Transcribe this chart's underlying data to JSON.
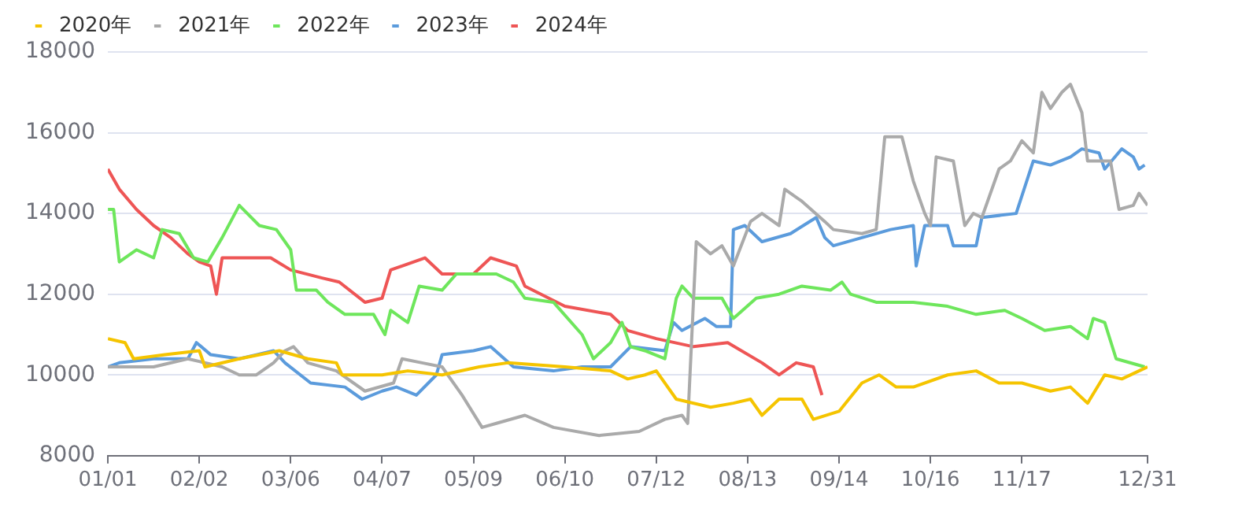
{
  "chart_data": {
    "type": "line",
    "legend": "top left",
    "grid": "y",
    "marker": "none",
    "line_style": "solid",
    "xlim": [
      "--01-01",
      "--12-31"
    ],
    "xticks": [
      {
        "value": "--01-01",
        "label": "01/01"
      },
      {
        "value": "--02-02",
        "label": "02/02"
      },
      {
        "value": "--03-06",
        "label": "03/06"
      },
      {
        "value": "--04-07",
        "label": "04/07"
      },
      {
        "value": "--05-09",
        "label": "05/09"
      },
      {
        "value": "--06-10",
        "label": "06/10"
      },
      {
        "value": "--07-12",
        "label": "07/12"
      },
      {
        "value": "--08-13",
        "label": "08/13"
      },
      {
        "value": "--09-14",
        "label": "09/14"
      },
      {
        "value": "--10-16",
        "label": "10/16"
      },
      {
        "value": "--11-17",
        "label": "11/17"
      },
      {
        "value": "--12-31",
        "label": "12/31"
      }
    ],
    "ylim": [
      8000,
      18000
    ],
    "yticks": [
      8000,
      10000,
      12000,
      14000,
      16000,
      18000
    ],
    "series": [
      {
        "name": "2020年",
        "color": "#f5c400",
        "x": [
          "--01-01",
          "--01-07",
          "--01-10",
          "--01-21",
          "--02-02",
          "--02-04",
          "--02-16",
          "--03-02",
          "--03-12",
          "--03-22",
          "--03-24",
          "--04-07",
          "--04-16",
          "--04-28",
          "--05-11",
          "--05-21",
          "--06-10",
          "--06-26",
          "--07-02",
          "--07-08",
          "--07-12",
          "--07-19",
          "--07-31",
          "--08-08",
          "--08-14",
          "--08-18",
          "--08-24",
          "--09-01",
          "--09-05",
          "--09-14",
          "--09-22",
          "--09-28",
          "--10-04",
          "--10-10",
          "--10-22",
          "--11-01",
          "--11-09",
          "--11-17",
          "--11-27",
          "--12-04",
          "--12-10",
          "--12-16",
          "--12-22",
          "--12-28",
          "--12-31"
        ],
        "values": [
          10900,
          10800,
          10400,
          10500,
          10600,
          10200,
          10400,
          10600,
          10400,
          10300,
          10000,
          10000,
          10100,
          10000,
          10200,
          10300,
          10200,
          10100,
          9900,
          10000,
          10100,
          9400,
          9200,
          9300,
          9400,
          9000,
          9400,
          9400,
          8900,
          9100,
          9800,
          10000,
          9700,
          9700,
          10000,
          10100,
          9800,
          9800,
          9600,
          9700,
          9300,
          10000,
          9900,
          10100,
          10200
        ]
      },
      {
        "name": "2021年",
        "color": "#aaaaaa",
        "x": [
          "--01-01",
          "--01-17",
          "--01-29",
          "--02-10",
          "--02-16",
          "--02-22",
          "--02-28",
          "--03-04",
          "--03-07",
          "--03-12",
          "--03-22",
          "--04-01",
          "--04-11",
          "--04-14",
          "--04-21",
          "--04-28",
          "--05-05",
          "--05-12",
          "--05-17",
          "--05-27",
          "--06-06",
          "--06-22",
          "--07-06",
          "--07-15",
          "--07-21",
          "--07-23",
          "--07-26",
          "--07-31",
          "--08-04",
          "--08-08",
          "--08-14",
          "--08-18",
          "--08-24",
          "--08-26",
          "--09-01",
          "--09-09",
          "--09-12",
          "--09-22",
          "--09-27",
          "--09-30",
          "--10-06",
          "--10-10",
          "--10-14",
          "--10-16",
          "--10-18",
          "--10-24",
          "--10-28",
          "--10-31",
          "--11-03",
          "--11-09",
          "--11-13",
          "--11-17",
          "--11-21",
          "--11-24",
          "--11-27",
          "--12-01",
          "--12-04",
          "--12-08",
          "--12-10",
          "--12-18",
          "--12-21",
          "--12-26",
          "--12-28",
          "--12-31"
        ],
        "values": [
          10200,
          10200,
          10400,
          10200,
          10000,
          10000,
          10300,
          10600,
          10700,
          10300,
          10100,
          9600,
          9800,
          10400,
          10300,
          10200,
          9500,
          8700,
          8800,
          9000,
          8700,
          8500,
          8600,
          8900,
          9000,
          8800,
          13300,
          13000,
          13200,
          12700,
          13800,
          14000,
          13700,
          14600,
          14300,
          13800,
          13600,
          13500,
          13600,
          15900,
          15900,
          14800,
          14000,
          13700,
          15400,
          15300,
          13700,
          14000,
          13900,
          15100,
          15300,
          15800,
          15500,
          17000,
          16600,
          17000,
          17200,
          16500,
          15300,
          15300,
          14100,
          14200,
          14500,
          14200
        ]
      },
      {
        "name": "2022年",
        "color": "#6ee65c",
        "x": [
          "--01-01",
          "--01-03",
          "--01-05",
          "--01-11",
          "--01-17",
          "--01-20",
          "--01-26",
          "--01-31",
          "--02-05",
          "--02-10",
          "--02-16",
          "--02-23",
          "--03-01",
          "--03-06",
          "--03-08",
          "--03-15",
          "--03-19",
          "--03-25",
          "--04-04",
          "--04-08",
          "--04-10",
          "--04-16",
          "--04-20",
          "--04-28",
          "--05-03",
          "--05-17",
          "--05-23",
          "--05-27",
          "--06-06",
          "--06-16",
          "--06-20",
          "--06-26",
          "--06-30",
          "--07-03",
          "--07-08",
          "--07-15",
          "--07-19",
          "--07-21",
          "--07-25",
          "--08-04",
          "--08-08",
          "--08-16",
          "--08-24",
          "--09-01",
          "--09-11",
          "--09-15",
          "--09-18",
          "--09-27",
          "--10-10",
          "--10-22",
          "--11-01",
          "--11-11",
          "--11-17",
          "--11-25",
          "--12-04",
          "--12-10",
          "--12-12",
          "--12-16",
          "--12-20",
          "--12-30"
        ],
        "values": [
          14100,
          14100,
          12800,
          13100,
          12900,
          13600,
          13500,
          12900,
          12800,
          13400,
          14200,
          13700,
          13600,
          13100,
          12100,
          12100,
          11800,
          11500,
          11500,
          11000,
          11600,
          11300,
          12200,
          12100,
          12500,
          12500,
          12300,
          11900,
          11800,
          11000,
          10400,
          10800,
          11300,
          10700,
          10600,
          10400,
          11900,
          12200,
          11900,
          11900,
          11400,
          11900,
          12000,
          12200,
          12100,
          12300,
          12000,
          11800,
          11800,
          11700,
          11500,
          11600,
          11400,
          11100,
          11200,
          10900,
          11400,
          11300,
          10400,
          10200
        ]
      },
      {
        "name": "2023年",
        "color": "#5b9bdc",
        "x": [
          "--01-01",
          "--01-05",
          "--01-17",
          "--01-29",
          "--02-01",
          "--02-06",
          "--02-16",
          "--02-22",
          "--02-28",
          "--03-04",
          "--03-13",
          "--03-25",
          "--03-31",
          "--04-07",
          "--04-12",
          "--04-19",
          "--04-26",
          "--04-28",
          "--05-09",
          "--05-15",
          "--05-23",
          "--06-06",
          "--06-16",
          "--06-26",
          "--07-03",
          "--07-15",
          "--07-18",
          "--07-21",
          "--07-29",
          "--08-02",
          "--08-07",
          "--08-08",
          "--08-12",
          "--08-18",
          "--08-28",
          "--09-06",
          "--09-09",
          "--09-12",
          "--09-22",
          "--10-02",
          "--10-10",
          "--10-11",
          "--10-14",
          "--10-22",
          "--10-24",
          "--11-01",
          "--11-03",
          "--11-15",
          "--11-21",
          "--11-27",
          "--12-04",
          "--12-08",
          "--12-14",
          "--12-16",
          "--12-22",
          "--12-26",
          "--12-28",
          "--12-30"
        ],
        "values": [
          10200,
          10300,
          10400,
          10400,
          10800,
          10500,
          10400,
          10500,
          10600,
          10300,
          9800,
          9700,
          9400,
          9600,
          9700,
          9500,
          10000,
          10500,
          10600,
          10700,
          10200,
          10100,
          10200,
          10200,
          10700,
          10600,
          11300,
          11100,
          11400,
          11200,
          11200,
          13600,
          13700,
          13300,
          13500,
          13900,
          13400,
          13200,
          13400,
          13600,
          13700,
          12700,
          13700,
          13700,
          13200,
          13200,
          13900,
          14000,
          15300,
          15200,
          15400,
          15600,
          15500,
          15100,
          15600,
          15400,
          15100,
          15200
        ]
      },
      {
        "name": "2024年",
        "color": "#ee5555",
        "x": [
          "--01-01",
          "--01-05",
          "--01-11",
          "--01-17",
          "--01-23",
          "--01-29",
          "--02-02",
          "--02-06",
          "--02-08",
          "--02-10",
          "--02-27",
          "--03-06",
          "--03-17",
          "--03-23",
          "--04-01",
          "--04-07",
          "--04-10",
          "--04-22",
          "--04-28",
          "--05-09",
          "--05-15",
          "--05-24",
          "--05-27",
          "--06-10",
          "--06-26",
          "--07-02",
          "--07-12",
          "--07-25",
          "--08-06",
          "--08-18",
          "--08-24",
          "--08-30",
          "--09-05",
          "--09-08"
        ],
        "values": [
          15100,
          14600,
          14100,
          13700,
          13400,
          13000,
          12800,
          12700,
          12000,
          12900,
          12900,
          12600,
          12400,
          12300,
          11800,
          11900,
          12600,
          12900,
          12500,
          12500,
          12900,
          12700,
          12200,
          11700,
          11500,
          11100,
          10900,
          10700,
          10800,
          10300,
          10000,
          10300,
          10200,
          9500
        ]
      }
    ]
  }
}
